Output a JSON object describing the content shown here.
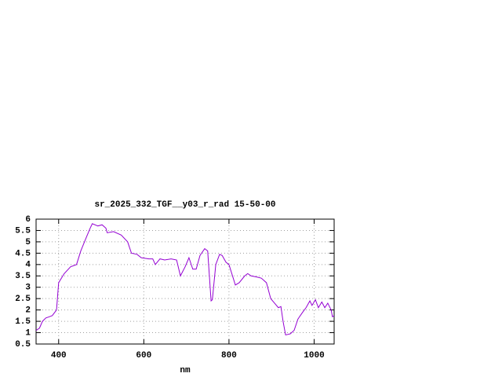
{
  "chart_data": {
    "type": "line",
    "title": "sr_2025_332_TGF__y03_r_rad 15-50-00",
    "xlabel": "nm",
    "x": [
      347,
      355,
      362,
      370,
      378,
      385,
      395,
      400,
      413,
      428,
      442,
      452,
      465,
      474,
      479,
      492,
      502,
      511,
      514,
      529,
      547,
      562,
      571,
      584,
      594,
      612,
      621,
      627,
      638,
      649,
      664,
      677,
      686,
      697,
      706,
      715,
      723,
      732,
      743,
      750,
      758,
      761,
      769,
      778,
      784,
      793,
      800,
      815,
      824,
      837,
      844,
      852,
      866,
      876,
      888,
      898,
      907,
      916,
      922,
      927,
      933,
      944,
      953,
      962,
      973,
      981,
      990,
      995,
      1003,
      1010,
      1018,
      1025,
      1032,
      1040,
      1043,
      1047
    ],
    "values": [
      1.1,
      1.2,
      1.5,
      1.65,
      1.7,
      1.75,
      2.0,
      3.2,
      3.6,
      3.9,
      4.0,
      4.6,
      5.2,
      5.6,
      5.8,
      5.7,
      5.75,
      5.6,
      5.4,
      5.45,
      5.3,
      5.0,
      4.5,
      4.45,
      4.3,
      4.25,
      4.25,
      4.0,
      4.25,
      4.2,
      4.25,
      4.2,
      3.5,
      3.9,
      4.3,
      3.8,
      3.8,
      4.4,
      4.7,
      4.6,
      2.4,
      2.45,
      4.0,
      4.45,
      4.4,
      4.1,
      4.0,
      3.1,
      3.2,
      3.5,
      3.6,
      3.5,
      3.45,
      3.4,
      3.2,
      2.5,
      2.3,
      2.1,
      2.15,
      1.5,
      0.9,
      0.95,
      1.1,
      1.6,
      1.9,
      2.1,
      2.4,
      2.2,
      2.45,
      2.1,
      2.35,
      2.1,
      2.3,
      2.0,
      1.7,
      1.75
    ],
    "color": "#9400d3",
    "xlim": [
      347,
      1047
    ],
    "ylim": [
      0.5,
      6
    ],
    "xticks": [
      400,
      600,
      800,
      1000
    ],
    "yticks": [
      0.5,
      1,
      1.5,
      2,
      2.5,
      3,
      3.5,
      4,
      4.5,
      5,
      5.5,
      6
    ],
    "grid": true
  }
}
